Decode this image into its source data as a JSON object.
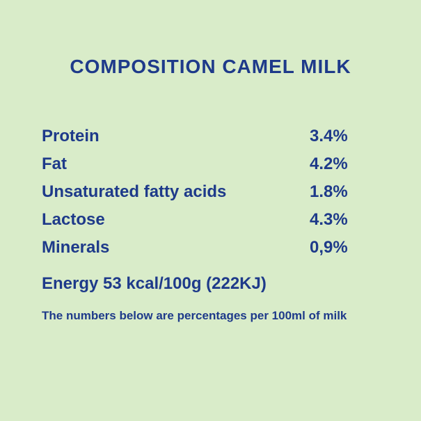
{
  "title": "COMPOSITION CAMEL MILK",
  "rows": [
    {
      "label": "Protein",
      "value": "3.4%"
    },
    {
      "label": "Fat",
      "value": "4.2%"
    },
    {
      "label": "Unsaturated fatty acids",
      "value": "1.8%"
    },
    {
      "label": "Lactose",
      "value": "4.3%"
    },
    {
      "label": "Minerals",
      "value": "0,9%"
    }
  ],
  "energy": "Energy 53 kcal/100g (222KJ)",
  "footnote": "The numbers below are percentages per 100ml of milk",
  "colors": {
    "background": "#d9ecc9",
    "text": "#1e3a8a"
  },
  "fonts": {
    "title_size": 28,
    "row_size": 24,
    "footnote_size": 17
  }
}
